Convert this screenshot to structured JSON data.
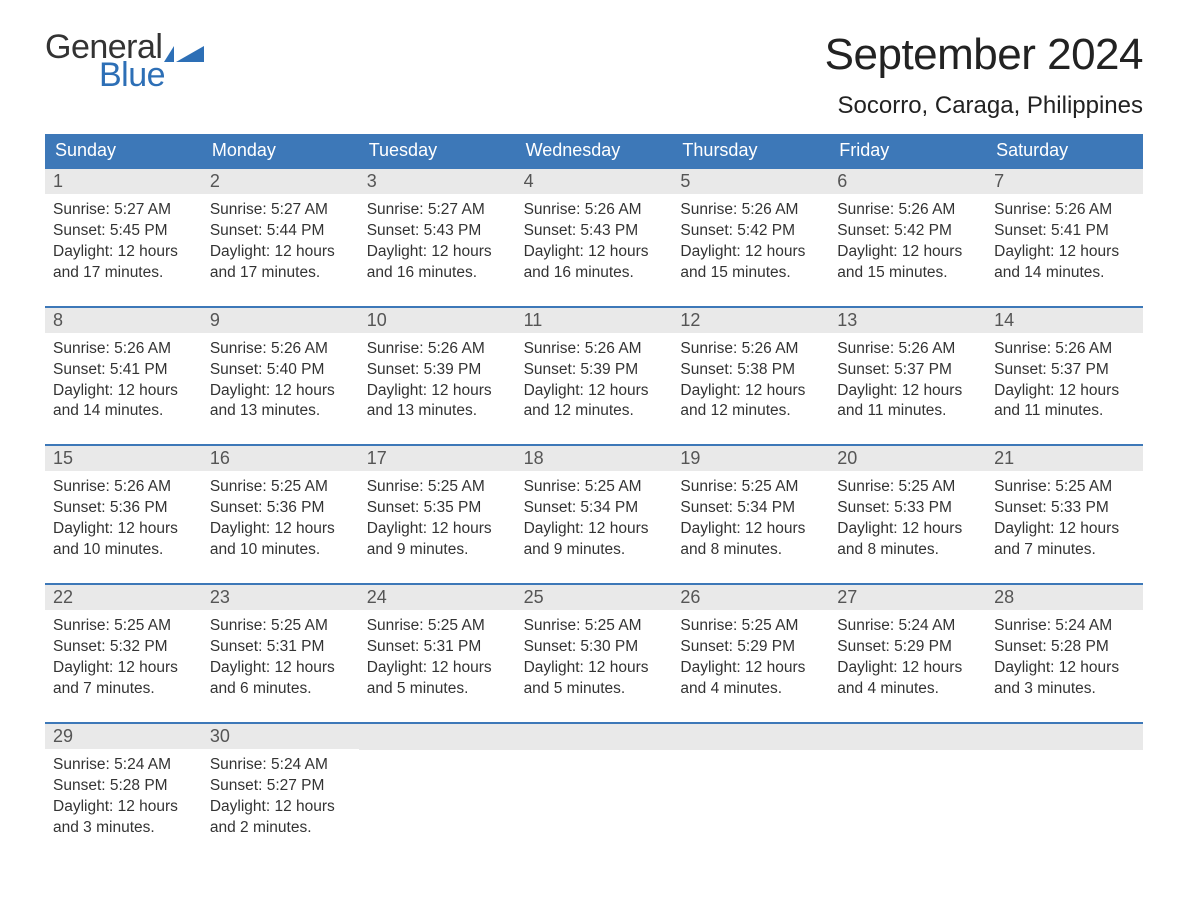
{
  "logo": {
    "word1": "General",
    "word2": "Blue"
  },
  "title": "September 2024",
  "location": "Socorro, Caraga, Philippines",
  "colors": {
    "brand_blue": "#3d78b8",
    "logo_blue": "#2d6fb6",
    "header_bg": "#3d78b8",
    "daynum_bg": "#e9e9e9",
    "text": "#333333",
    "background": "#ffffff"
  },
  "typography": {
    "title_fontsize": 44,
    "location_fontsize": 24,
    "weekday_fontsize": 18,
    "daynum_fontsize": 18,
    "body_fontsize": 15.5
  },
  "weekdays": [
    "Sunday",
    "Monday",
    "Tuesday",
    "Wednesday",
    "Thursday",
    "Friday",
    "Saturday"
  ],
  "weeks": [
    [
      {
        "n": "1",
        "sr": "Sunrise: 5:27 AM",
        "ss": "Sunset: 5:45 PM",
        "d1": "Daylight: 12 hours",
        "d2": "and 17 minutes."
      },
      {
        "n": "2",
        "sr": "Sunrise: 5:27 AM",
        "ss": "Sunset: 5:44 PM",
        "d1": "Daylight: 12 hours",
        "d2": "and 17 minutes."
      },
      {
        "n": "3",
        "sr": "Sunrise: 5:27 AM",
        "ss": "Sunset: 5:43 PM",
        "d1": "Daylight: 12 hours",
        "d2": "and 16 minutes."
      },
      {
        "n": "4",
        "sr": "Sunrise: 5:26 AM",
        "ss": "Sunset: 5:43 PM",
        "d1": "Daylight: 12 hours",
        "d2": "and 16 minutes."
      },
      {
        "n": "5",
        "sr": "Sunrise: 5:26 AM",
        "ss": "Sunset: 5:42 PM",
        "d1": "Daylight: 12 hours",
        "d2": "and 15 minutes."
      },
      {
        "n": "6",
        "sr": "Sunrise: 5:26 AM",
        "ss": "Sunset: 5:42 PM",
        "d1": "Daylight: 12 hours",
        "d2": "and 15 minutes."
      },
      {
        "n": "7",
        "sr": "Sunrise: 5:26 AM",
        "ss": "Sunset: 5:41 PM",
        "d1": "Daylight: 12 hours",
        "d2": "and 14 minutes."
      }
    ],
    [
      {
        "n": "8",
        "sr": "Sunrise: 5:26 AM",
        "ss": "Sunset: 5:41 PM",
        "d1": "Daylight: 12 hours",
        "d2": "and 14 minutes."
      },
      {
        "n": "9",
        "sr": "Sunrise: 5:26 AM",
        "ss": "Sunset: 5:40 PM",
        "d1": "Daylight: 12 hours",
        "d2": "and 13 minutes."
      },
      {
        "n": "10",
        "sr": "Sunrise: 5:26 AM",
        "ss": "Sunset: 5:39 PM",
        "d1": "Daylight: 12 hours",
        "d2": "and 13 minutes."
      },
      {
        "n": "11",
        "sr": "Sunrise: 5:26 AM",
        "ss": "Sunset: 5:39 PM",
        "d1": "Daylight: 12 hours",
        "d2": "and 12 minutes."
      },
      {
        "n": "12",
        "sr": "Sunrise: 5:26 AM",
        "ss": "Sunset: 5:38 PM",
        "d1": "Daylight: 12 hours",
        "d2": "and 12 minutes."
      },
      {
        "n": "13",
        "sr": "Sunrise: 5:26 AM",
        "ss": "Sunset: 5:37 PM",
        "d1": "Daylight: 12 hours",
        "d2": "and 11 minutes."
      },
      {
        "n": "14",
        "sr": "Sunrise: 5:26 AM",
        "ss": "Sunset: 5:37 PM",
        "d1": "Daylight: 12 hours",
        "d2": "and 11 minutes."
      }
    ],
    [
      {
        "n": "15",
        "sr": "Sunrise: 5:26 AM",
        "ss": "Sunset: 5:36 PM",
        "d1": "Daylight: 12 hours",
        "d2": "and 10 minutes."
      },
      {
        "n": "16",
        "sr": "Sunrise: 5:25 AM",
        "ss": "Sunset: 5:36 PM",
        "d1": "Daylight: 12 hours",
        "d2": "and 10 minutes."
      },
      {
        "n": "17",
        "sr": "Sunrise: 5:25 AM",
        "ss": "Sunset: 5:35 PM",
        "d1": "Daylight: 12 hours",
        "d2": "and 9 minutes."
      },
      {
        "n": "18",
        "sr": "Sunrise: 5:25 AM",
        "ss": "Sunset: 5:34 PM",
        "d1": "Daylight: 12 hours",
        "d2": "and 9 minutes."
      },
      {
        "n": "19",
        "sr": "Sunrise: 5:25 AM",
        "ss": "Sunset: 5:34 PM",
        "d1": "Daylight: 12 hours",
        "d2": "and 8 minutes."
      },
      {
        "n": "20",
        "sr": "Sunrise: 5:25 AM",
        "ss": "Sunset: 5:33 PM",
        "d1": "Daylight: 12 hours",
        "d2": "and 8 minutes."
      },
      {
        "n": "21",
        "sr": "Sunrise: 5:25 AM",
        "ss": "Sunset: 5:33 PM",
        "d1": "Daylight: 12 hours",
        "d2": "and 7 minutes."
      }
    ],
    [
      {
        "n": "22",
        "sr": "Sunrise: 5:25 AM",
        "ss": "Sunset: 5:32 PM",
        "d1": "Daylight: 12 hours",
        "d2": "and 7 minutes."
      },
      {
        "n": "23",
        "sr": "Sunrise: 5:25 AM",
        "ss": "Sunset: 5:31 PM",
        "d1": "Daylight: 12 hours",
        "d2": "and 6 minutes."
      },
      {
        "n": "24",
        "sr": "Sunrise: 5:25 AM",
        "ss": "Sunset: 5:31 PM",
        "d1": "Daylight: 12 hours",
        "d2": "and 5 minutes."
      },
      {
        "n": "25",
        "sr": "Sunrise: 5:25 AM",
        "ss": "Sunset: 5:30 PM",
        "d1": "Daylight: 12 hours",
        "d2": "and 5 minutes."
      },
      {
        "n": "26",
        "sr": "Sunrise: 5:25 AM",
        "ss": "Sunset: 5:29 PM",
        "d1": "Daylight: 12 hours",
        "d2": "and 4 minutes."
      },
      {
        "n": "27",
        "sr": "Sunrise: 5:24 AM",
        "ss": "Sunset: 5:29 PM",
        "d1": "Daylight: 12 hours",
        "d2": "and 4 minutes."
      },
      {
        "n": "28",
        "sr": "Sunrise: 5:24 AM",
        "ss": "Sunset: 5:28 PM",
        "d1": "Daylight: 12 hours",
        "d2": "and 3 minutes."
      }
    ],
    [
      {
        "n": "29",
        "sr": "Sunrise: 5:24 AM",
        "ss": "Sunset: 5:28 PM",
        "d1": "Daylight: 12 hours",
        "d2": "and 3 minutes."
      },
      {
        "n": "30",
        "sr": "Sunrise: 5:24 AM",
        "ss": "Sunset: 5:27 PM",
        "d1": "Daylight: 12 hours",
        "d2": "and 2 minutes."
      },
      {
        "empty": true
      },
      {
        "empty": true
      },
      {
        "empty": true
      },
      {
        "empty": true
      },
      {
        "empty": true
      }
    ]
  ]
}
